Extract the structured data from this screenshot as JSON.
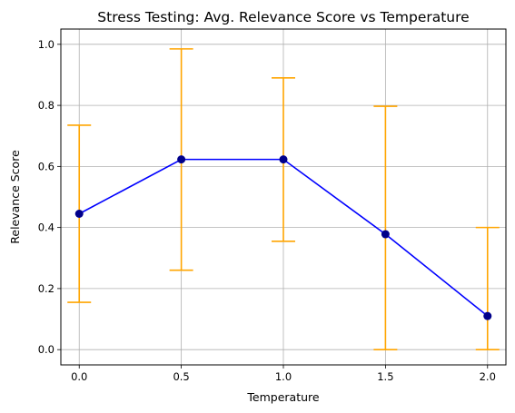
{
  "chart_data": {
    "type": "line",
    "title": "Stress Testing: Avg. Relevance Score vs Temperature",
    "xlabel": "Temperature",
    "ylabel": "Relevance Score",
    "x": [
      0.0,
      0.5,
      1.0,
      1.5,
      2.0
    ],
    "series": [
      {
        "values": [
          0.445,
          0.623,
          0.623,
          0.378,
          0.11
        ],
        "error_lower": [
          0.155,
          0.26,
          0.355,
          0.0,
          0.0
        ],
        "error_upper": [
          0.735,
          0.985,
          0.89,
          0.797,
          0.4
        ],
        "line_color": "#0000ff",
        "marker_color": "#00008b",
        "errorbar_color": "#ffa500"
      }
    ],
    "xlim": [
      -0.09,
      2.09
    ],
    "ylim": [
      -0.05,
      1.05
    ],
    "xticks": [
      0.0,
      0.5,
      1.0,
      1.5,
      2.0
    ],
    "xtick_labels": [
      "0.0",
      "0.5",
      "1.0",
      "1.5",
      "2.0"
    ],
    "yticks": [
      0.0,
      0.2,
      0.4,
      0.6,
      0.8,
      1.0
    ],
    "ytick_labels": [
      "0.0",
      "0.2",
      "0.4",
      "0.6",
      "0.8",
      "1.0"
    ],
    "grid": true,
    "grid_color": "#b0b0b0"
  }
}
